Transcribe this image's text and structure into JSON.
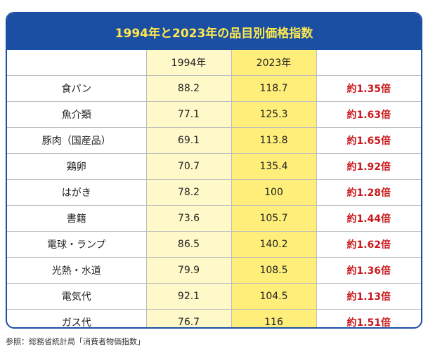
{
  "title": "1994年と2023年の品目別価格指数",
  "headers": {
    "item": "",
    "y1994": "1994年",
    "y2023": "2023年",
    "ratio": ""
  },
  "rows": [
    {
      "item": "食パン",
      "v1994": "88.2",
      "v2023": "118.7",
      "ratio": "約1.35倍"
    },
    {
      "item": "魚介類",
      "v1994": "77.1",
      "v2023": "125.3",
      "ratio": "約1.63倍"
    },
    {
      "item": "豚肉（国産品）",
      "v1994": "69.1",
      "v2023": "113.8",
      "ratio": "約1.65倍"
    },
    {
      "item": "鶏卵",
      "v1994": "70.7",
      "v2023": "135.4",
      "ratio": "約1.92倍"
    },
    {
      "item": "はがき",
      "v1994": "78.2",
      "v2023": "100",
      "ratio": "約1.28倍"
    },
    {
      "item": "書籍",
      "v1994": "73.6",
      "v2023": "105.7",
      "ratio": "約1.44倍"
    },
    {
      "item": "電球・ランプ",
      "v1994": "86.5",
      "v2023": "140.2",
      "ratio": "約1.62倍"
    },
    {
      "item": "光熱・水道",
      "v1994": "79.9",
      "v2023": "108.5",
      "ratio": "約1.36倍"
    },
    {
      "item": "電気代",
      "v1994": "92.1",
      "v2023": "104.5",
      "ratio": "約1.13倍"
    },
    {
      "item": "ガス代",
      "v1994": "76.7",
      "v2023": "116",
      "ratio": "約1.51倍"
    }
  ],
  "source": "参照：総務省統計局「消費者物価指数」",
  "colors": {
    "header_bg": "#1b4fa3",
    "title_text": "#ffe94d",
    "col1994_bg": "#fff8c9",
    "col2023_bg": "#ffef7a",
    "ratio_text": "#c8191d"
  }
}
